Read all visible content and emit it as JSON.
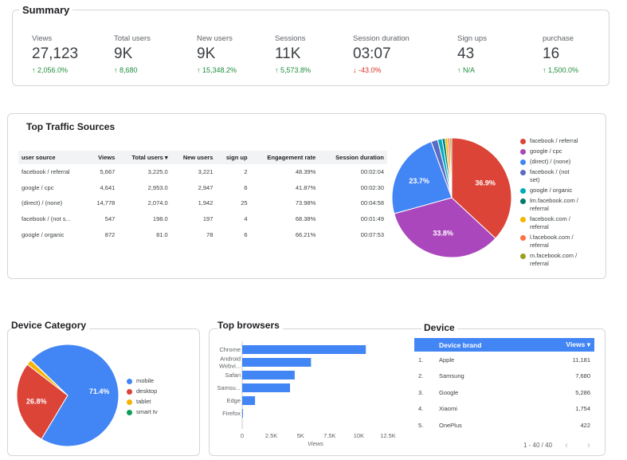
{
  "summary": {
    "title": "Summary",
    "kpis": [
      {
        "label": "Views",
        "value": "27,123",
        "delta": "2,056.0%",
        "trend": "up"
      },
      {
        "label": "Total users",
        "value": "9K",
        "delta": "8,680",
        "trend": "up"
      },
      {
        "label": "New users",
        "value": "9K",
        "delta": "15,348.2%",
        "trend": "up"
      },
      {
        "label": "Sessions",
        "value": "11K",
        "delta": "5,573.8%",
        "trend": "up"
      },
      {
        "label": "Session duration",
        "value": "03:07",
        "delta": "-43.0%",
        "trend": "down"
      },
      {
        "label": "Sign ups",
        "value": "43",
        "delta": "N/A",
        "trend": "up"
      },
      {
        "label": "purchase",
        "value": "16",
        "delta": "1,500.0%",
        "trend": "up"
      }
    ]
  },
  "traffic": {
    "title": "Top Traffic Sources",
    "columns": [
      "user source",
      "Views",
      "Total users ▾",
      "New users",
      "sign up",
      "Engagement rate",
      "Session duration"
    ],
    "rows": [
      [
        "facebook / referral",
        "5,667",
        "3,225.0",
        "3,221",
        "2",
        "48.39%",
        "00:02:04"
      ],
      [
        "google / cpc",
        "4,641",
        "2,953.0",
        "2,947",
        "6",
        "41.87%",
        "00:02:30"
      ],
      [
        "(direct) / (none)",
        "14,778",
        "2,074.0",
        "1,942",
        "25",
        "73.98%",
        "00:04:58"
      ],
      [
        "facebook / (not s...",
        "547",
        "198.0",
        "197",
        "4",
        "68.38%",
        "00:01:49"
      ],
      [
        "google / organic",
        "872",
        "81.0",
        "78",
        "6",
        "66.21%",
        "00:07:53"
      ]
    ],
    "legend": [
      {
        "label": "facebook / referral",
        "color": "#db4437"
      },
      {
        "label": "google / cpc",
        "color": "#ab47bc"
      },
      {
        "label": "(direct) / (none)",
        "color": "#4285f4"
      },
      {
        "label": "facebook / (not set)",
        "color": "#5c6bc0"
      },
      {
        "label": "google / organic",
        "color": "#00acc1"
      },
      {
        "label": "lm.facebook.com / referral",
        "color": "#00796b"
      },
      {
        "label": "facebook.com / referral",
        "color": "#f4b400"
      },
      {
        "label": "l.facebook.com / referral",
        "color": "#ff7043"
      },
      {
        "label": "m.facebook.com / referral",
        "color": "#9e9d24"
      }
    ]
  },
  "device_category": {
    "title": "Device Category",
    "legend": [
      {
        "label": "mobile",
        "color": "#4285f4"
      },
      {
        "label": "desktop",
        "color": "#db4437"
      },
      {
        "label": "tablet",
        "color": "#f4b400"
      },
      {
        "label": "smart tv",
        "color": "#0f9d58"
      }
    ]
  },
  "browsers": {
    "title": "Top browsers",
    "axis_label": "Views"
  },
  "device": {
    "title": "Device",
    "columns": [
      "Device brand",
      "Views ▾"
    ],
    "rows": [
      {
        "rank": "1.",
        "brand": "Apple",
        "views": "11,181"
      },
      {
        "rank": "2.",
        "brand": "Samsung",
        "views": "7,680"
      },
      {
        "rank": "3.",
        "brand": "Google",
        "views": "5,286"
      },
      {
        "rank": "4.",
        "brand": "Xiaomi",
        "views": "1,754"
      },
      {
        "rank": "5.",
        "brand": "OnePlus",
        "views": "422"
      }
    ],
    "pager": "1 - 40 / 40"
  },
  "chart_data": [
    {
      "type": "pie",
      "categories": [
        "facebook / referral",
        "google / cpc",
        "(direct) / (none)",
        "facebook / (not set)",
        "google / organic",
        "lm.facebook.com / referral",
        "facebook.com / referral",
        "l.facebook.com / referral",
        "m.facebook.com / referral"
      ],
      "values": [
        36.9,
        33.8,
        23.7,
        1.8,
        1.2,
        0.8,
        0.7,
        0.6,
        0.5
      ],
      "labels_shown": [
        "36.9%",
        "33.8%",
        "23.7%"
      ],
      "colors": [
        "#db4437",
        "#ab47bc",
        "#4285f4",
        "#5c6bc0",
        "#00acc1",
        "#00796b",
        "#f4b400",
        "#ff7043",
        "#9e9d24"
      ]
    },
    {
      "type": "pie",
      "categories": [
        "desktop",
        "tablet",
        "smart tv",
        "mobile"
      ],
      "values": [
        26.8,
        1.7,
        0.1,
        71.4
      ],
      "labels_shown": [
        "26.8%",
        "",
        "",
        "71.4%"
      ],
      "colors": [
        "#db4437",
        "#f4b400",
        "#0f9d58",
        "#4285f4"
      ]
    },
    {
      "type": "bar",
      "orientation": "horizontal",
      "categories": [
        "Chrome",
        "Android Webvi...",
        "Safari",
        "Samsu...",
        "Edge",
        "Firefox"
      ],
      "values": [
        10600,
        5900,
        4500,
        4100,
        1100,
        60
      ],
      "xlim": [
        0,
        12500
      ],
      "xticks": [
        "0",
        "2.5K",
        "5K",
        "7.5K",
        "10K",
        "12.5K"
      ],
      "xlabel": "Views",
      "color": "#4285f4"
    }
  ]
}
